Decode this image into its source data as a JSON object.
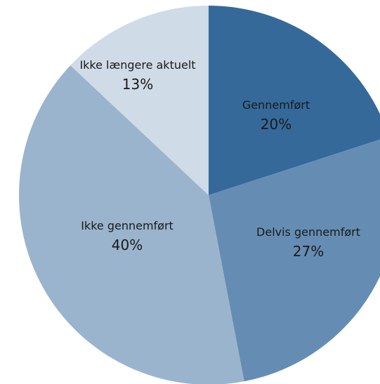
{
  "chart_data": {
    "type": "pie",
    "title": "",
    "slices": [
      {
        "label": "Gennemført",
        "value": 20,
        "value_label": "20%",
        "color": "#35699a"
      },
      {
        "label": "Delvis gennemført",
        "value": 27,
        "value_label": "27%",
        "color": "#658db4"
      },
      {
        "label": "Ikke gennemført",
        "value": 40,
        "value_label": "40%",
        "color": "#9ab4cd"
      },
      {
        "label": "Ikke længere aktuelt",
        "value": 13,
        "value_label": "13%",
        "color": "#cfdbe6"
      }
    ],
    "start_angle": "12 o'clock",
    "direction": "clockwise",
    "legend": "none",
    "labels_inside_slices": true
  }
}
